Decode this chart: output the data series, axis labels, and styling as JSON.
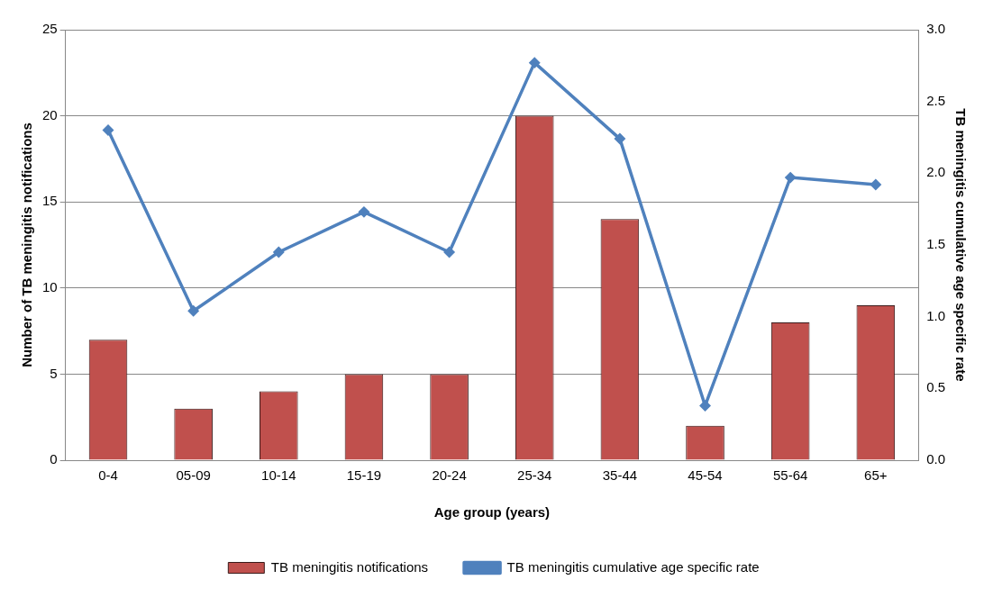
{
  "chart_data": {
    "type": "bar",
    "xlabel": "Age group (years)",
    "ylabel": "Number of TB meningitis notifications",
    "y2label": "TB meningitis cumulative age specific rate",
    "categories": [
      "0-4",
      "05-09",
      "10-14",
      "15-19",
      "20-24",
      "25-34",
      "35-44",
      "45-54",
      "55-64",
      "65+"
    ],
    "series": [
      {
        "name": "TB meningitis notifications",
        "color": "#c0504d",
        "values": [
          7,
          3,
          4,
          5,
          5,
          20,
          14,
          2,
          8,
          9
        ]
      },
      {
        "name": "TB meningitis cumulative age specific rate",
        "type": "line",
        "axis": "y2",
        "color": "#4f81bd",
        "marker": "diamond",
        "values": [
          2.3,
          1.04,
          1.45,
          1.73,
          1.45,
          2.77,
          2.24,
          0.38,
          1.97,
          1.92
        ]
      }
    ],
    "ylim": [
      0,
      25
    ],
    "yticks": [
      0,
      5,
      10,
      15,
      20,
      25
    ],
    "y2lim": [
      0,
      3
    ],
    "y2ticks": [
      {
        "value": 0,
        "label": "0.0"
      },
      {
        "value": 0.5,
        "label": "0.5"
      },
      {
        "value": 1,
        "label": "1.0"
      },
      {
        "value": 1.5,
        "label": "1.5"
      },
      {
        "value": 2,
        "label": "2.0"
      },
      {
        "value": 2.5,
        "label": "2.5"
      },
      {
        "value": 3,
        "label": "3.0"
      }
    ],
    "grid": "y",
    "legend": "bottom"
  }
}
